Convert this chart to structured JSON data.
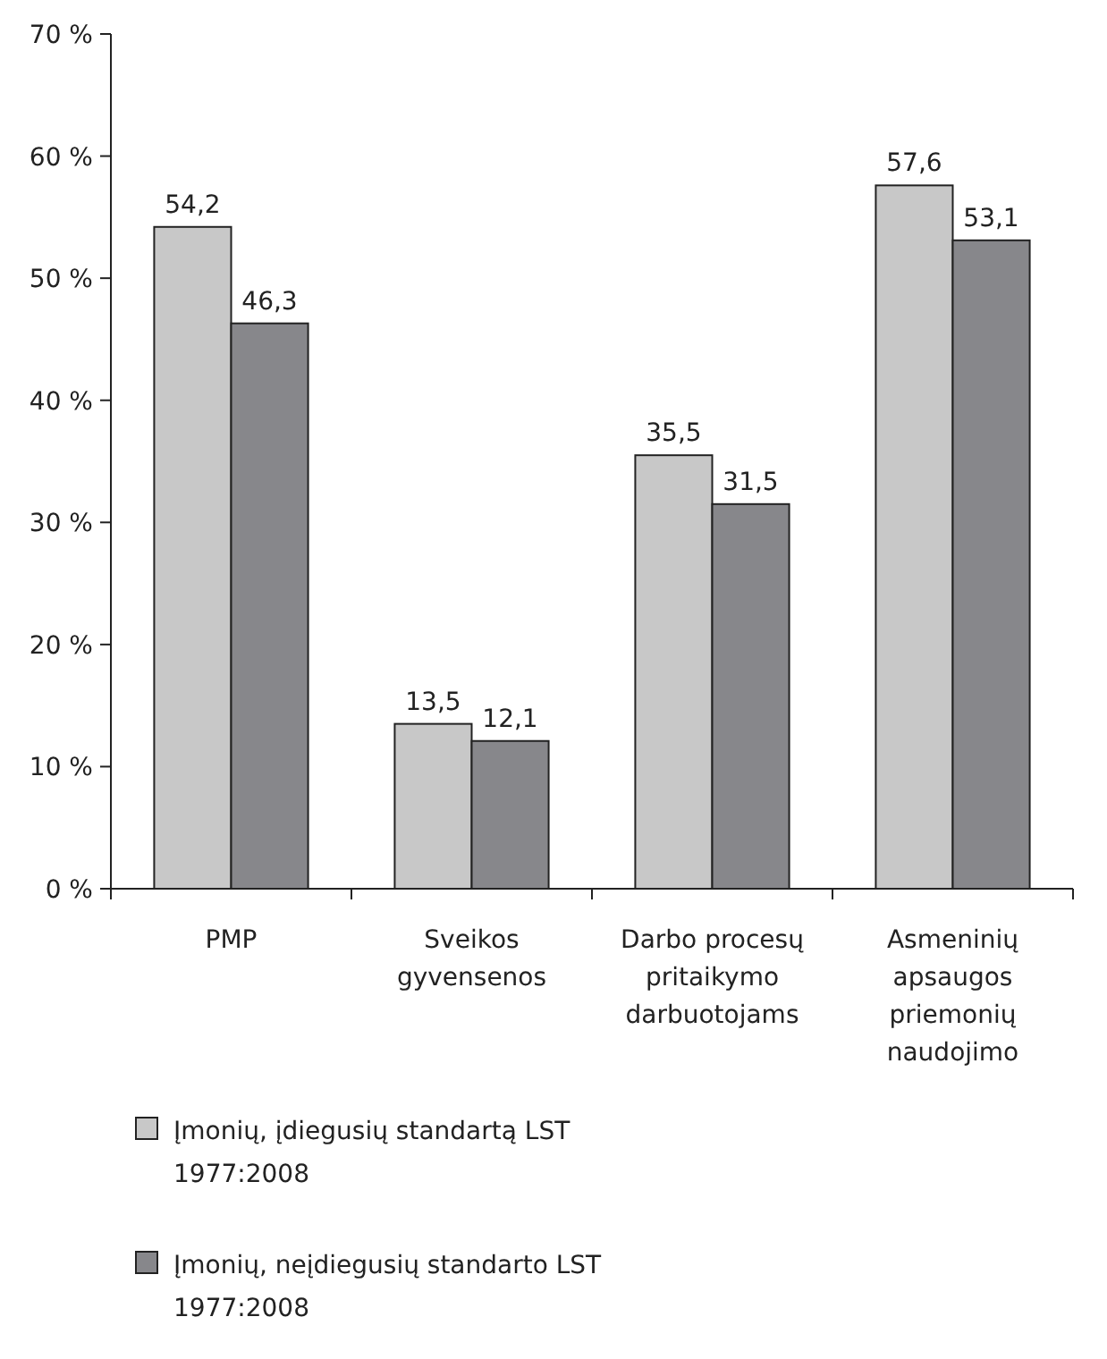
{
  "chart_data": {
    "type": "bar",
    "categories": [
      "PMP",
      "Sveikos gyvensenos",
      "Darbo procesų pritaikymo darbuotojams",
      "Asmeninių apsaugos priemonių naudojimo"
    ],
    "series": [
      {
        "name": "Įmonių, įdiegusių standartą LST 1977:2008",
        "color": "#c8c8c8",
        "values": [
          54.2,
          13.5,
          35.5,
          57.6
        ],
        "value_labels": [
          "54,2",
          "13,5",
          "35,5",
          "57,6"
        ]
      },
      {
        "name": "Įmonių, neįdiegusių standarto LST 1977:2008",
        "color": "#87878b",
        "values": [
          46.3,
          12.1,
          31.5,
          53.1
        ],
        "value_labels": [
          "46,3",
          "12,1",
          "31,5",
          "53,1"
        ]
      }
    ],
    "ylim": [
      0,
      70
    ],
    "yticks": [
      {
        "value": 0,
        "label": "0 %"
      },
      {
        "value": 10,
        "label": "10 %"
      },
      {
        "value": 20,
        "label": "20 %"
      },
      {
        "value": 30,
        "label": "30 %"
      },
      {
        "value": 40,
        "label": "40 %"
      },
      {
        "value": 50,
        "label": "50 %"
      },
      {
        "value": 60,
        "label": "60 %"
      },
      {
        "value": 70,
        "label": "70 %"
      }
    ],
    "legend": "bottom",
    "grid": false
  }
}
